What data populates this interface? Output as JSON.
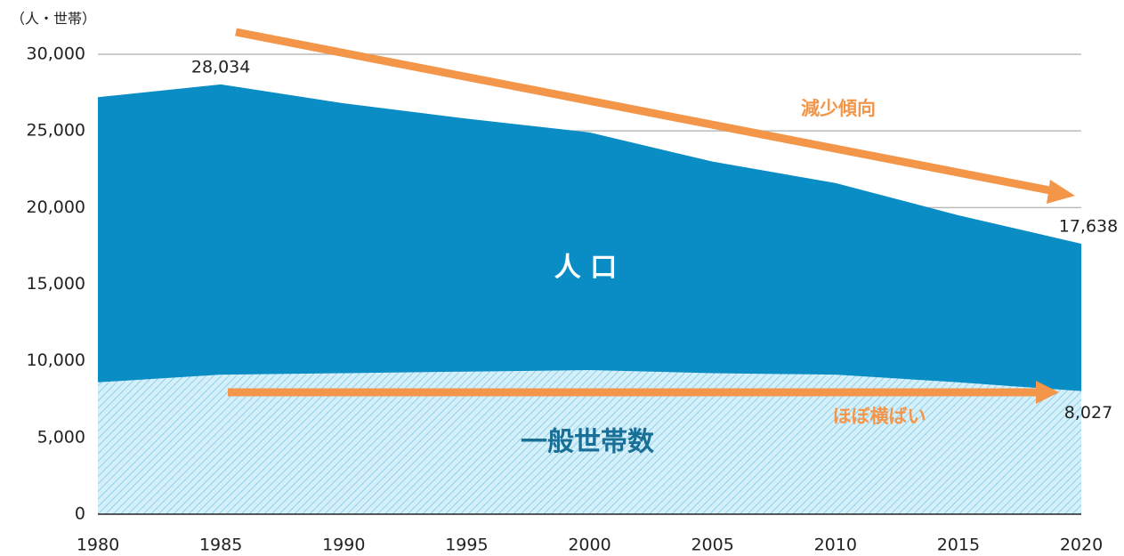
{
  "chart_data": {
    "type": "area",
    "y_axis_label": "（人・世帯）",
    "x": [
      1980,
      1985,
      1990,
      1995,
      2000,
      2005,
      2010,
      2015,
      2020
    ],
    "series": [
      {
        "name": "人 口",
        "color": "#0a8cc4",
        "values": [
          27200,
          28034,
          26800,
          25800,
          24900,
          23000,
          21600,
          19500,
          17638
        ],
        "value_labels": [
          null,
          "28,034",
          null,
          null,
          null,
          null,
          null,
          null,
          "17,638"
        ]
      },
      {
        "name": "一般世帯数",
        "color": "#bfe6f5",
        "values": [
          8600,
          9100,
          9200,
          9300,
          9400,
          9200,
          9100,
          8600,
          8027
        ],
        "value_labels": [
          null,
          null,
          null,
          null,
          null,
          null,
          null,
          null,
          "8,027"
        ]
      }
    ],
    "annotations": [
      "減少傾向",
      "ほぼ横ばい"
    ],
    "xlim": [
      1980,
      2020
    ],
    "xticks": [
      1980,
      1985,
      1990,
      1995,
      2000,
      2005,
      2010,
      2015,
      2020
    ],
    "ylim": [
      0,
      30000
    ],
    "yticks": [
      0,
      {
        "value": 5000,
        "label": "5,000"
      },
      {
        "value": 10000,
        "label": "10,000"
      },
      {
        "value": 15000,
        "label": "15,000"
      },
      {
        "value": 20000,
        "label": "20,000"
      },
      {
        "value": 25000,
        "label": "25,000"
      },
      {
        "value": 30000,
        "label": "30,000"
      }
    ],
    "grid": true
  }
}
